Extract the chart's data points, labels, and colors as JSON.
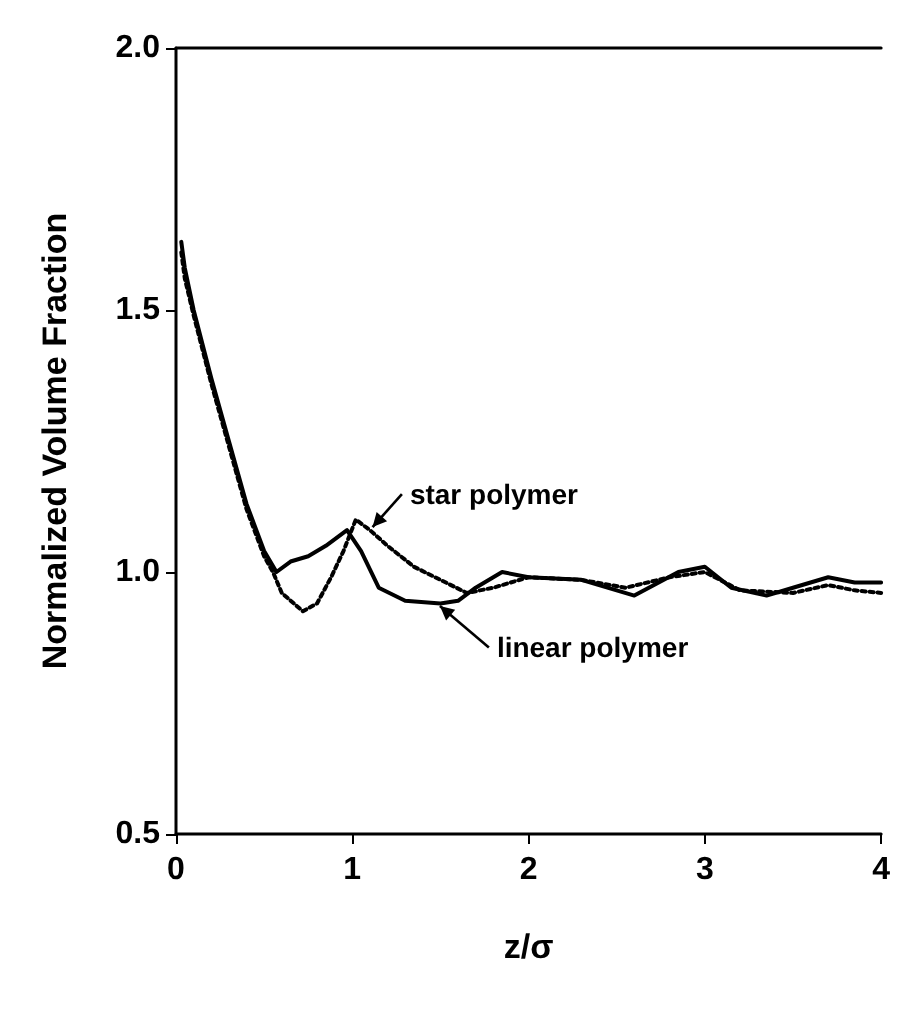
{
  "chart_data": {
    "type": "line",
    "xlabel": "z/σ",
    "ylabel": "Normalized Volume Fraction",
    "xlim": [
      0,
      4
    ],
    "xticks": [
      0,
      1,
      2,
      3,
      4
    ],
    "ylim": [
      0.5,
      2.0
    ],
    "yticks": [
      {
        "value": 0.5,
        "label": "0.5"
      },
      {
        "value": 1.0,
        "label": "1.0"
      },
      {
        "value": 1.5,
        "label": "1.5"
      },
      {
        "value": 2.0,
        "label": "2.0"
      }
    ],
    "grid": false,
    "marker": "none",
    "series": [
      {
        "color": "#000000",
        "line_style": "solid",
        "x": [
          0.03,
          0.05,
          0.1,
          0.2,
          0.3,
          0.4,
          0.5,
          0.57,
          0.65,
          0.75,
          0.85,
          0.97,
          1.05,
          1.15,
          1.3,
          1.5,
          1.6,
          1.7,
          1.85,
          2.0,
          2.3,
          2.6,
          2.85,
          3.0,
          3.15,
          3.35,
          3.5,
          3.7,
          3.85,
          4.0
        ],
        "values": [
          1.63,
          1.58,
          1.5,
          1.37,
          1.25,
          1.13,
          1.04,
          1.0,
          1.02,
          1.03,
          1.05,
          1.08,
          1.04,
          0.97,
          0.945,
          0.94,
          0.945,
          0.97,
          1.0,
          0.99,
          0.985,
          0.955,
          1.0,
          1.01,
          0.97,
          0.955,
          0.97,
          0.99,
          0.98,
          0.98
        ]
      },
      {
        "color": "#000000",
        "line_style": "dotted",
        "x": [
          0.03,
          0.05,
          0.1,
          0.2,
          0.3,
          0.4,
          0.5,
          0.55,
          0.6,
          0.72,
          0.8,
          0.88,
          0.95,
          1.02,
          1.1,
          1.2,
          1.35,
          1.5,
          1.65,
          1.8,
          2.0,
          2.3,
          2.55,
          2.8,
          3.0,
          3.2,
          3.5,
          3.7,
          3.85,
          4.0
        ],
        "values": [
          1.61,
          1.56,
          1.49,
          1.36,
          1.24,
          1.12,
          1.03,
          1.0,
          0.96,
          0.925,
          0.94,
          0.99,
          1.04,
          1.1,
          1.08,
          1.05,
          1.01,
          0.985,
          0.96,
          0.97,
          0.99,
          0.985,
          0.97,
          0.99,
          1.0,
          0.965,
          0.96,
          0.975,
          0.965,
          0.96
        ]
      }
    ],
    "annotations": [
      {
        "text": "star polymer",
        "x": 1.1,
        "y": 1.08
      },
      {
        "text": "linear polymer",
        "x": 1.48,
        "y": 0.94
      }
    ]
  }
}
